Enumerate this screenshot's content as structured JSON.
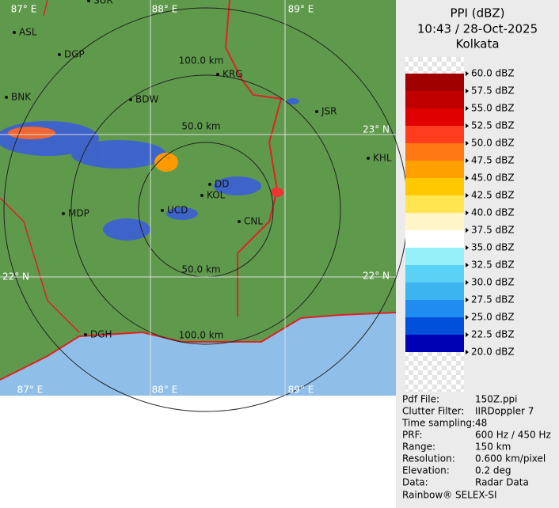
{
  "header": {
    "title": "PPI (dBZ)",
    "time": "10:43 / 28-Oct-2025",
    "station": "Kolkata"
  },
  "legend": {
    "labels": [
      "60.0 dBZ",
      "57.5 dBZ",
      "55.0 dBZ",
      "52.5 dBZ",
      "50.0 dBZ",
      "47.5 dBZ",
      "45.0 dBZ",
      "42.5 dBZ",
      "40.0 dBZ",
      "37.5 dBZ",
      "35.0 dBZ",
      "32.5 dBZ",
      "30.0 dBZ",
      "27.5 dBZ",
      "25.0 dBZ",
      "22.5 dBZ",
      "20.0 dBZ"
    ]
  },
  "info": {
    "rows": [
      [
        "Pdf File:",
        "150Z.ppi"
      ],
      [
        "Clutter Filter:",
        "IIRDoppler 7"
      ],
      [
        "Time sampling:",
        "48"
      ],
      [
        "PRF:",
        "600 Hz / 450 Hz"
      ],
      [
        "Range:",
        "150 km"
      ],
      [
        "Resolution:",
        "0.600 km/pixel"
      ],
      [
        "Elevation:",
        "0.2 deg"
      ],
      [
        "Data:",
        "Radar Data"
      ]
    ],
    "footer": "Rainbow® SELEX-SI"
  },
  "map": {
    "grid_labels": [
      "87° E",
      "88° E",
      "89° E",
      "87° E",
      "88° E",
      "89° E",
      "23° N",
      "22° N",
      "22° N"
    ],
    "ring_labels": [
      "100.0 km",
      "50.0 km",
      "50.0 km",
      "100.0 km"
    ],
    "cities": [
      "SUR",
      "ASL",
      "DGP",
      "KRG",
      "BDW",
      "BNK",
      "JSR",
      "KHL",
      "DD",
      "KOL",
      "UCD",
      "MDP",
      "CNL",
      "DGH"
    ]
  }
}
